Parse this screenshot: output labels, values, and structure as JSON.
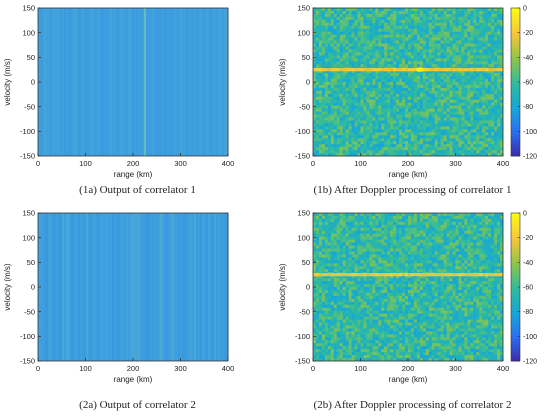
{
  "chart_data": [
    {
      "type": "heatmap",
      "caption": "(1a) Output of correlator 1",
      "xlabel": "range (km)",
      "ylabel": "velocity (m/s)",
      "xlim": [
        0,
        400
      ],
      "ylim": [
        -150,
        150
      ],
      "xticks": [
        "0",
        "100",
        "200",
        "300",
        "400"
      ],
      "yticks": [
        "150",
        "100",
        "50",
        "0",
        "-50",
        "-100",
        "-150"
      ],
      "features": {
        "vertical_line_range_km": 225
      },
      "colorbar": false
    },
    {
      "type": "heatmap",
      "caption": "(1b) After Doppler processing of correlator 1",
      "xlabel": "range (km)",
      "ylabel": "velocity (m/s)",
      "xlim": [
        0,
        400
      ],
      "ylim": [
        -150,
        150
      ],
      "xticks": [
        "0",
        "100",
        "200",
        "300",
        "400"
      ],
      "yticks": [
        "150",
        "100",
        "50",
        "0",
        "-50",
        "-100",
        "-150"
      ],
      "features": {
        "horizontal_line_velocity_ms": 25,
        "peak_range_km": 225
      },
      "colorbar": true,
      "colorbar_ticks": [
        "0",
        "-20",
        "-40",
        "-60",
        "-80",
        "-100",
        "-120"
      ],
      "clim": [
        -120,
        0
      ]
    },
    {
      "type": "heatmap",
      "caption": "(2a) Output of correlator 2",
      "xlabel": "range (km)",
      "ylabel": "velocity (m/s)",
      "xlim": [
        0,
        400
      ],
      "ylim": [
        -150,
        150
      ],
      "xticks": [
        "0",
        "100",
        "200",
        "300",
        "400"
      ],
      "yticks": [
        "150",
        "100",
        "50",
        "0",
        "-50",
        "-100",
        "-150"
      ],
      "features": {
        "vertical_stripes": true
      },
      "colorbar": false
    },
    {
      "type": "heatmap",
      "caption": "(2b) After Doppler processing of correlator 2",
      "xlabel": "range (km)",
      "ylabel": "velocity (m/s)",
      "xlim": [
        0,
        400
      ],
      "ylim": [
        -150,
        150
      ],
      "xticks": [
        "0",
        "100",
        "200",
        "300",
        "400"
      ],
      "yticks": [
        "150",
        "100",
        "50",
        "0",
        "-50",
        "-100",
        "-150"
      ],
      "features": {
        "horizontal_line_velocity_ms": 25
      },
      "colorbar": true,
      "colorbar_ticks": [
        "0",
        "-20",
        "-40",
        "-60",
        "-80",
        "-100",
        "-120"
      ],
      "clim": [
        -120,
        0
      ]
    }
  ],
  "colors": {
    "tile_a_base": "#3d9fe0",
    "tile_b_base": "#3aa7a4",
    "highlight": "#f0d24a",
    "colormap": [
      "#3e26a8",
      "#2a6ef2",
      "#17a7d8",
      "#2ebc9c",
      "#91c547",
      "#f8c439",
      "#f9fb15"
    ]
  }
}
